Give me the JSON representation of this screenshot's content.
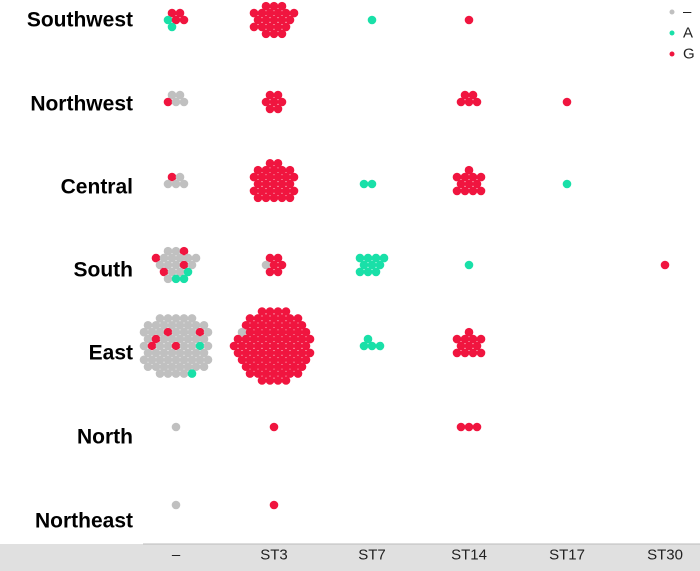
{
  "chart_data": {
    "type": "scatter",
    "subtype": "beeswarm-grid",
    "title": "",
    "xlabel": "",
    "ylabel": "",
    "categories_x": [
      "–",
      "ST3",
      "ST7",
      "ST14",
      "ST17",
      "ST30"
    ],
    "categories_y": [
      "Southwest",
      "Northwest",
      "Central",
      "South",
      "East",
      "North",
      "Northeast"
    ],
    "legend": {
      "position": "top-right",
      "entries": [
        {
          "label": "–",
          "color": "#c0c0c0"
        },
        {
          "label": "A",
          "color": "#19e0a8"
        },
        {
          "label": "G",
          "color": "#f0153f"
        }
      ]
    },
    "colors": {
      "–": "#c0c0c0",
      "A": "#19e0a8",
      "G": "#f0153f"
    },
    "grid": false,
    "cells": [
      {
        "region": "Southwest",
        "type": "–",
        "counts": {
          "–": 0,
          "A": 2,
          "G": 4
        }
      },
      {
        "region": "Southwest",
        "type": "ST3",
        "counts": {
          "–": 0,
          "A": 0,
          "G": 22
        }
      },
      {
        "region": "Southwest",
        "type": "ST7",
        "counts": {
          "–": 0,
          "A": 1,
          "G": 0
        }
      },
      {
        "region": "Southwest",
        "type": "ST14",
        "counts": {
          "–": 0,
          "A": 0,
          "G": 1
        }
      },
      {
        "region": "Northwest",
        "type": "–",
        "counts": {
          "–": 4,
          "A": 0,
          "G": 1
        }
      },
      {
        "region": "Northwest",
        "type": "ST3",
        "counts": {
          "–": 0,
          "A": 0,
          "G": 7
        }
      },
      {
        "region": "Northwest",
        "type": "ST14",
        "counts": {
          "–": 0,
          "A": 0,
          "G": 5
        }
      },
      {
        "region": "Northwest",
        "type": "ST17",
        "counts": {
          "–": 0,
          "A": 0,
          "G": 1
        }
      },
      {
        "region": "Central",
        "type": "–",
        "counts": {
          "–": 4,
          "A": 0,
          "G": 1
        }
      },
      {
        "region": "Central",
        "type": "ST3",
        "counts": {
          "–": 0,
          "A": 0,
          "G": 29
        }
      },
      {
        "region": "Central",
        "type": "ST7",
        "counts": {
          "–": 0,
          "A": 2,
          "G": 0
        }
      },
      {
        "region": "Central",
        "type": "ST14",
        "counts": {
          "–": 0,
          "A": 0,
          "G": 12
        }
      },
      {
        "region": "Central",
        "type": "ST17",
        "counts": {
          "–": 0,
          "A": 1,
          "G": 0
        }
      },
      {
        "region": "South",
        "type": "–",
        "counts": {
          "–": 14,
          "A": 3,
          "G": 4
        }
      },
      {
        "region": "South",
        "type": "ST3",
        "counts": {
          "–": 1,
          "A": 0,
          "G": 6
        }
      },
      {
        "region": "South",
        "type": "ST7",
        "counts": {
          "–": 0,
          "A": 10,
          "G": 0
        }
      },
      {
        "region": "South",
        "type": "ST14",
        "counts": {
          "–": 0,
          "A": 1,
          "G": 0
        }
      },
      {
        "region": "South",
        "type": "ST30",
        "counts": {
          "–": 0,
          "A": 0,
          "G": 1
        }
      },
      {
        "region": "East",
        "type": "–",
        "counts": {
          "–": 62,
          "A": 2,
          "G": 5
        }
      },
      {
        "region": "East",
        "type": "ST3",
        "counts": {
          "–": 1,
          "A": 0,
          "G": 85
        }
      },
      {
        "region": "East",
        "type": "ST7",
        "counts": {
          "–": 0,
          "A": 4,
          "G": 0
        }
      },
      {
        "region": "East",
        "type": "ST14",
        "counts": {
          "–": 0,
          "A": 0,
          "G": 12
        }
      },
      {
        "region": "North",
        "type": "–",
        "counts": {
          "–": 1,
          "A": 0,
          "G": 0
        }
      },
      {
        "region": "North",
        "type": "ST3",
        "counts": {
          "–": 0,
          "A": 0,
          "G": 1
        }
      },
      {
        "region": "North",
        "type": "ST14",
        "counts": {
          "–": 0,
          "A": 0,
          "G": 3
        }
      },
      {
        "region": "Northeast",
        "type": "–",
        "counts": {
          "–": 1,
          "A": 0,
          "G": 0
        }
      },
      {
        "region": "Northeast",
        "type": "ST3",
        "counts": {
          "–": 0,
          "A": 0,
          "G": 1
        }
      }
    ]
  }
}
